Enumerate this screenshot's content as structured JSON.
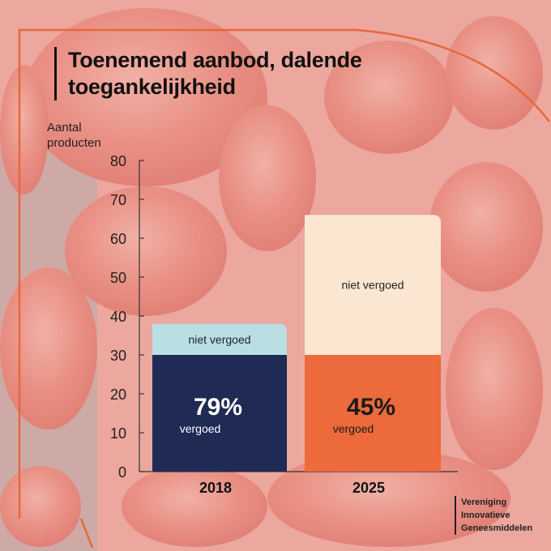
{
  "title_line1": "Toenemend aanbod, dalende",
  "title_line2": "toegankelijkheid",
  "organization": [
    "Vereniging",
    "Innovatieve",
    "Geneesmiddelen"
  ],
  "colors": {
    "frame": "#e8683a",
    "vergoed_2018": "#1f2a55",
    "niet_2018": "#b9dfe4",
    "vergoed_2025": "#ec6a3b",
    "niet_2025": "#fbe6d2"
  },
  "chart_data": {
    "type": "bar",
    "stacked": true,
    "title": "Toenemend aanbod, dalende toegankelijkheid",
    "ylabel_line1": "Aantal",
    "ylabel_line2": "producten",
    "xlabel": "",
    "ylim": [
      0,
      80
    ],
    "yticks": [
      0,
      10,
      20,
      30,
      40,
      50,
      60,
      70,
      80
    ],
    "categories": [
      "2018",
      "2025"
    ],
    "series": [
      {
        "name": "vergoed",
        "values": [
          30,
          30
        ]
      },
      {
        "name": "niet vergoed",
        "values": [
          8,
          36
        ]
      }
    ],
    "annotations": [
      {
        "category": "2018",
        "percent": "79%",
        "label": "vergoed",
        "niet_label": "niet vergoed"
      },
      {
        "category": "2025",
        "percent": "45%",
        "label": "vergoed",
        "niet_label": "niet vergoed"
      }
    ]
  }
}
